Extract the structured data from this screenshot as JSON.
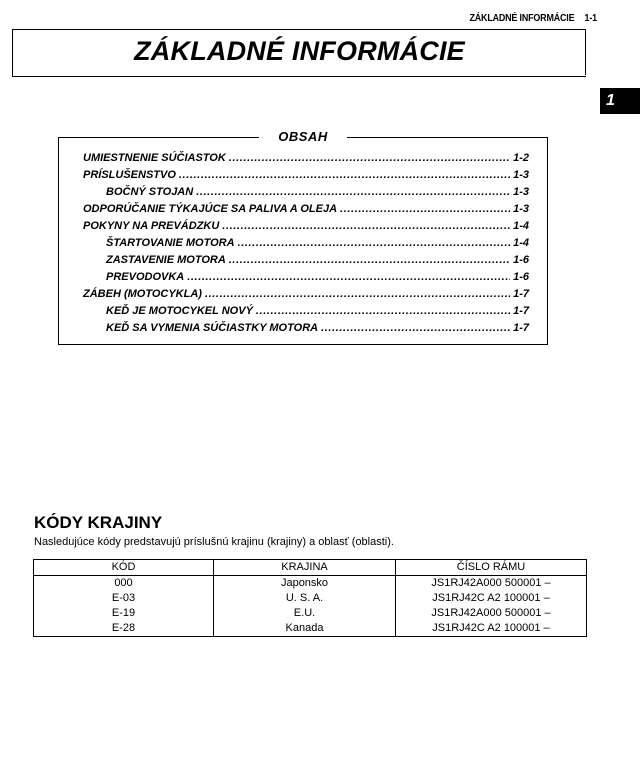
{
  "running_header": {
    "title": "ZÁKLADNÉ INFORMÁCIE",
    "page": "1-1"
  },
  "title": "ZÁKLADNÉ INFORMÁCIE",
  "chapter_tab": "1",
  "toc": {
    "title": "OBSAH",
    "items": [
      {
        "label": "UMIESTNENIE SÚČIASTOK",
        "page": "1-2",
        "level": 1
      },
      {
        "label": "PRÍSLUŠENSTVO",
        "page": "1-3",
        "level": 1
      },
      {
        "label": "BOČNÝ STOJAN",
        "page": "1-3",
        "level": 2
      },
      {
        "label": "ODPORÚČANIE TÝKAJÚCE SA PALIVA A OLEJA",
        "page": "1-3",
        "level": 1
      },
      {
        "label": "POKYNY NA PREVÁDZKU",
        "page": "1-4",
        "level": 1
      },
      {
        "label": "ŠTARTOVANIE MOTORA",
        "page": "1-4",
        "level": 2
      },
      {
        "label": "ZASTAVENIE MOTORA",
        "page": "1-6",
        "level": 2
      },
      {
        "label": "PREVODOVKA",
        "page": "1-6",
        "level": 2
      },
      {
        "label": "ZÁBEH (MOTOCYKLA)",
        "page": "1-7",
        "level": 1
      },
      {
        "label": "KEĎ JE MOTOCYKEL NOVÝ",
        "page": "1-7",
        "level": 2
      },
      {
        "label": "KEĎ SA VYMENIA SÚČIASTKY MOTORA",
        "page": "1-7",
        "level": 2
      }
    ]
  },
  "country_codes": {
    "heading": "KÓDY KRAJINY",
    "description": "Nasledujúce kódy predstavujú príslušnú krajinu (krajiny) a oblasť (oblasti).",
    "columns": [
      "KÓD",
      "KRAJINA",
      "ČÍSLO RÁMU"
    ],
    "rows": [
      [
        "000",
        "Japonsko",
        "JS1RJ42A000 500001 –"
      ],
      [
        "E-03",
        "U. S. A.",
        "JS1RJ42C A2 100001 –"
      ],
      [
        "E-19",
        "E.U.",
        "JS1RJ42A000 500001 –"
      ],
      [
        "E-28",
        "Kanada",
        "JS1RJ42C A2 100001 –"
      ]
    ]
  }
}
